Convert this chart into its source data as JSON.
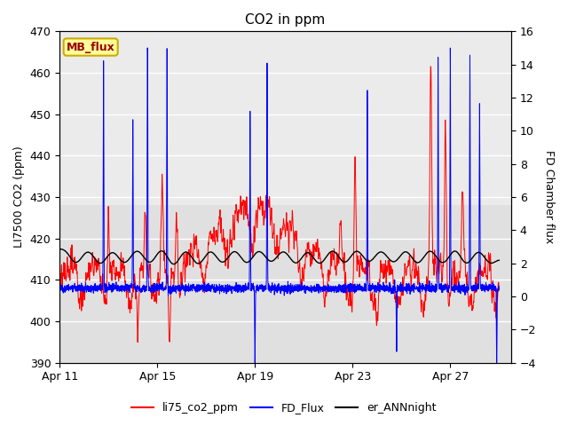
{
  "title": "CO2 in ppm",
  "ylabel_left": "LI7500 CO2 (ppm)",
  "ylabel_right": "FD Chamber flux",
  "ylim_left": [
    390,
    470
  ],
  "ylim_right": [
    -4,
    16
  ],
  "yticks_left": [
    390,
    400,
    410,
    420,
    430,
    440,
    450,
    460,
    470
  ],
  "yticks_right": [
    -4,
    -2,
    0,
    2,
    4,
    6,
    8,
    10,
    12,
    14,
    16
  ],
  "xtick_labels": [
    "Apr 11",
    "Apr 15",
    "Apr 19",
    "Apr 23",
    "Apr 27"
  ],
  "xtick_positions": [
    0,
    4,
    8,
    12,
    16
  ],
  "xlim": [
    0,
    18.5
  ],
  "legend_labels": [
    "li75_co2_ppm",
    "FD_Flux",
    "er_ANNnight"
  ],
  "annotation_text": "MB_flux",
  "annotation_bg": "#ffff99",
  "annotation_border": "#ccaa00",
  "annotation_text_color": "#990000",
  "plot_bg_light": "#e8e8e8",
  "plot_bg_dark": "#d8d8d8",
  "n_points": 3000,
  "seed": 123
}
